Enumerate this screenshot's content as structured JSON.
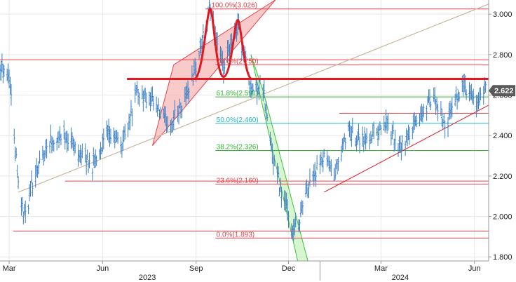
{
  "chart_data": {
    "type": "bar",
    "title": "",
    "xlabel": "",
    "ylabel": "",
    "ylim": [
      1.78,
      3.07
    ],
    "x_range": [
      "2023-02-20",
      "2024-06-15"
    ],
    "y_ticks": [
      "1.800",
      "2.000",
      "2.200",
      "2.400",
      "2.600",
      "2.800",
      "3.000"
    ],
    "x_ticks": [
      {
        "label": "Mar",
        "date": "2023-03-01"
      },
      {
        "label": "Jun",
        "date": "2023-06-01"
      },
      {
        "label": "Sep",
        "date": "2023-09-01"
      },
      {
        "label": "Dec",
        "date": "2023-12-01"
      },
      {
        "label": "Mar",
        "date": "2024-03-01"
      },
      {
        "label": "Jun",
        "date": "2024-06-01"
      }
    ],
    "year_labels": [
      {
        "label": "2023",
        "date": "2023-07-15"
      },
      {
        "label": "2024",
        "date": "2024-03-20"
      }
    ],
    "last_price": {
      "label": "2.622",
      "value": 2.622
    },
    "fib_levels": [
      {
        "label": "100.0%(3.026)",
        "value": 3.026,
        "color": "#e8434b"
      },
      {
        "label": "78.6%(2.750)",
        "value": 2.75,
        "color": "#e8434b"
      },
      {
        "label": "61.8%(2.591)",
        "value": 2.591,
        "color": "#2fb52f"
      },
      {
        "label": "50.0%(2.460)",
        "value": 2.46,
        "color": "#22b8c8"
      },
      {
        "label": "38.2%(2.326)",
        "value": 2.326,
        "color": "#2fb52f"
      },
      {
        "label": "23.6%(2.160)",
        "value": 2.16,
        "color": "#e8434b"
      },
      {
        "label": "0.0%(1.893)",
        "value": 1.893,
        "color": "#e8434b"
      }
    ],
    "extra_levels": [
      {
        "value": 2.775,
        "start": "2023-02-20",
        "color": "#e8434b"
      },
      {
        "value": 2.175,
        "start": "2023-04-25",
        "color": "#e8434b"
      },
      {
        "value": 1.928,
        "start": "2023-03-05",
        "color": "#e8434b"
      },
      {
        "value": 2.51,
        "start": "2024-01-20",
        "color": "#e8434b"
      }
    ],
    "neckline": {
      "value": 2.68,
      "start": "2023-06-25",
      "end": "2024-06-15",
      "color": "#e0191f"
    },
    "trend_lines": [
      {
        "name": "long-support",
        "points": [
          [
            "2023-03-10",
            2.12
          ],
          [
            "2024-06-15",
            3.05
          ]
        ],
        "color": "#c8b9a0"
      },
      {
        "name": "rising-support",
        "points": [
          [
            "2024-01-05",
            2.12
          ],
          [
            "2024-06-15",
            2.55
          ]
        ],
        "color": "#e0191f"
      }
    ],
    "channels": [
      {
        "name": "up-channel",
        "points": [
          [
            "2023-07-20",
            2.35
          ],
          [
            "2023-10-12",
            2.85
          ],
          [
            "2023-11-18",
            3.07
          ],
          [
            "2023-08-10",
            2.75
          ]
        ],
        "fill": "#f7b8b8",
        "stroke": "#e8434b"
      },
      {
        "name": "down-channel",
        "points": [
          [
            "2023-10-25",
            2.8
          ],
          [
            "2023-11-06",
            2.62
          ],
          [
            "2023-12-20",
            1.78
          ],
          [
            "2023-12-10",
            1.78
          ]
        ],
        "fill": "#c9f2c0",
        "stroke": "#3cc23c"
      }
    ],
    "double_top": [
      [
        "2023-08-30",
        2.68
      ],
      [
        "2023-09-15",
        3.026
      ],
      [
        "2023-09-28",
        2.69
      ],
      [
        "2023-10-12",
        2.97
      ],
      [
        "2023-10-26",
        2.68
      ]
    ],
    "anchors": [
      [
        "2023-02-20",
        2.76
      ],
      [
        "2023-03-01",
        2.7
      ],
      [
        "2023-03-07",
        2.35
      ],
      [
        "2023-03-12",
        2.08
      ],
      [
        "2023-03-17",
        1.99
      ],
      [
        "2023-03-25",
        2.2
      ],
      [
        "2023-04-10",
        2.38
      ],
      [
        "2023-04-25",
        2.4
      ],
      [
        "2023-05-10",
        2.32
      ],
      [
        "2023-05-22",
        2.25
      ],
      [
        "2023-06-05",
        2.4
      ],
      [
        "2023-06-20",
        2.36
      ],
      [
        "2023-07-05",
        2.62
      ],
      [
        "2023-07-20",
        2.56
      ],
      [
        "2023-08-05",
        2.45
      ],
      [
        "2023-08-18",
        2.55
      ],
      [
        "2023-08-30",
        2.7
      ],
      [
        "2023-09-15",
        3.02
      ],
      [
        "2023-09-28",
        2.72
      ],
      [
        "2023-10-12",
        2.95
      ],
      [
        "2023-10-26",
        2.62
      ],
      [
        "2023-11-05",
        2.66
      ],
      [
        "2023-11-15",
        2.3
      ],
      [
        "2023-11-25",
        2.1
      ],
      [
        "2023-12-05",
        1.92
      ],
      [
        "2023-12-12",
        2.0
      ],
      [
        "2023-12-22",
        2.18
      ],
      [
        "2024-01-05",
        2.28
      ],
      [
        "2024-01-15",
        2.2
      ],
      [
        "2024-01-28",
        2.42
      ],
      [
        "2024-02-15",
        2.38
      ],
      [
        "2024-03-05",
        2.46
      ],
      [
        "2024-03-20",
        2.33
      ],
      [
        "2024-04-05",
        2.47
      ],
      [
        "2024-04-20",
        2.58
      ],
      [
        "2024-05-05",
        2.45
      ],
      [
        "2024-05-20",
        2.66
      ],
      [
        "2024-06-01",
        2.55
      ],
      [
        "2024-06-12",
        2.63
      ]
    ],
    "colors": {
      "bars": "#3b7fc4",
      "grid": "#e8e8e8",
      "axis": "#9a9a9a",
      "price_tag": "#5a5a5a"
    }
  }
}
